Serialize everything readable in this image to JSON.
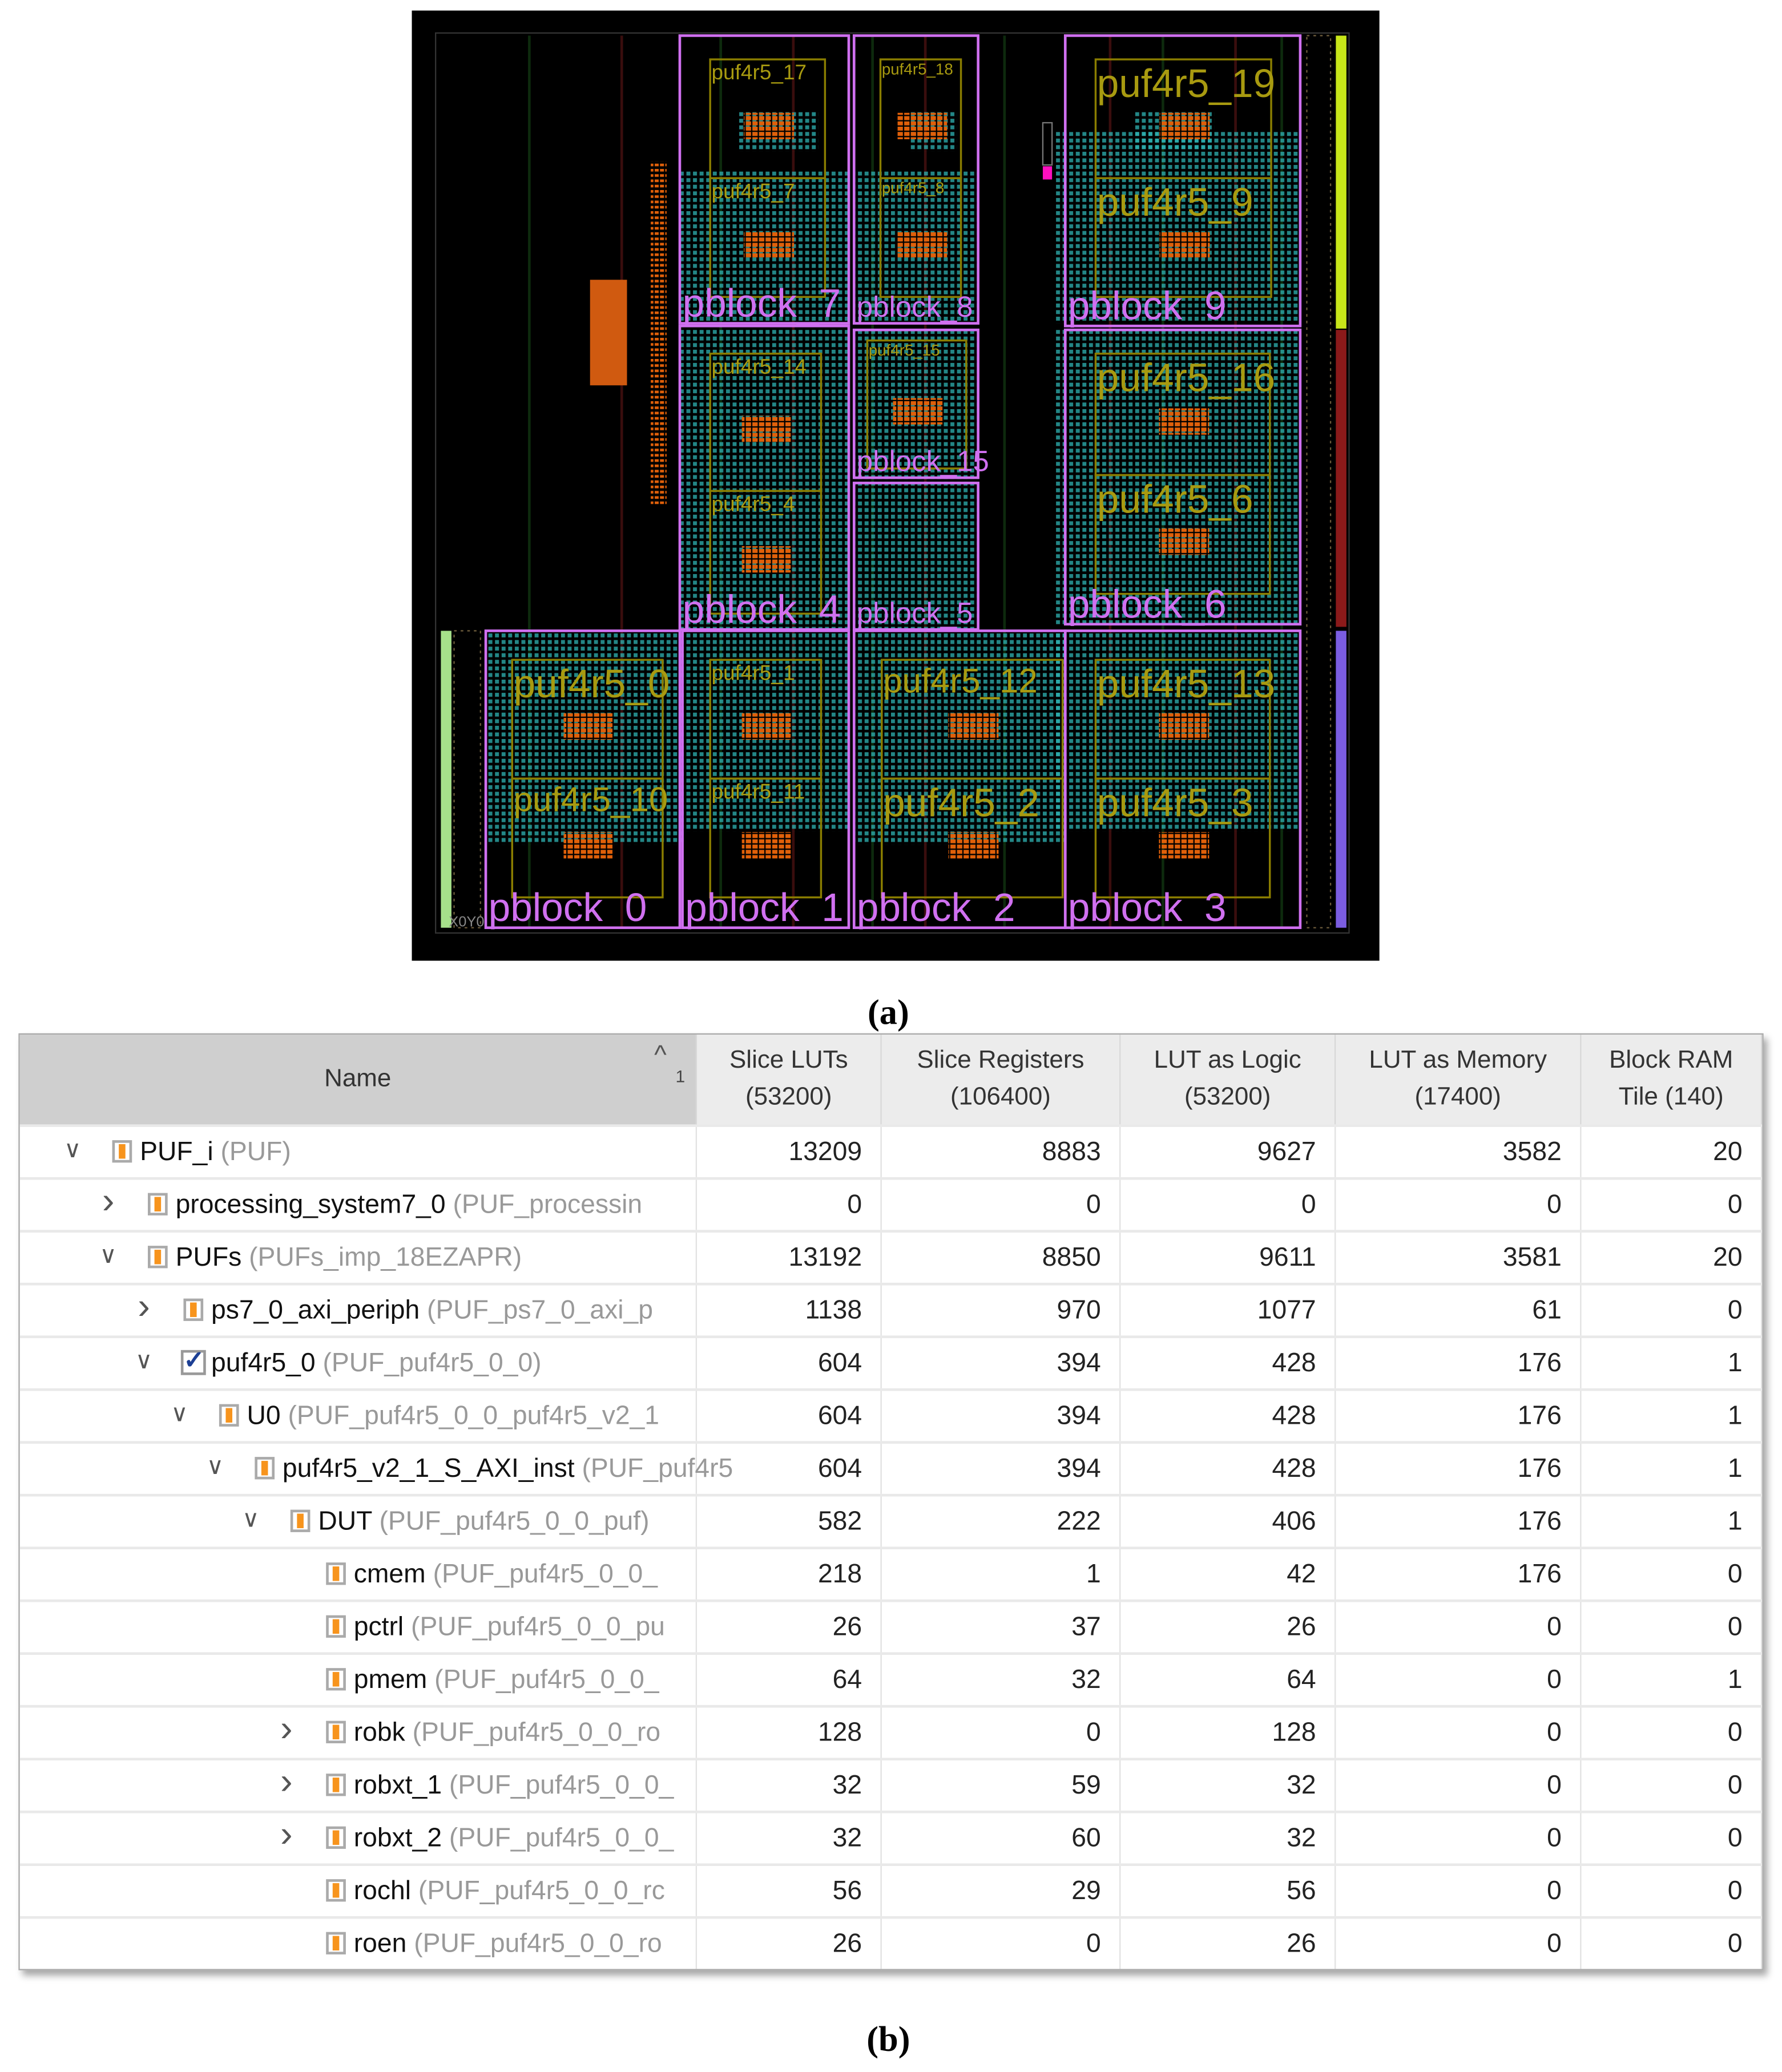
{
  "floorplan": {
    "pblocks": [
      "pblock_7",
      "pblock_8",
      "pblock_9",
      "pblock_15",
      "pblock_4",
      "pblock_5",
      "pblock_6",
      "pblock_0",
      "pblock_1",
      "pblock_2",
      "pblock_3"
    ],
    "pufs": [
      "puf4r5_17",
      "puf4r5_7",
      "puf4r5_18",
      "puf4r5_8",
      "puf4r5_19",
      "puf4r5_9",
      "puf4r5_14",
      "puf4r5_4",
      "puf4r5_15",
      "puf4r5_16",
      "puf4r5_6",
      "puf4r5_0",
      "puf4r5_10",
      "puf4r5_1",
      "puf4r5_11",
      "puf4r5_12",
      "puf4r5_2",
      "puf4r5_13",
      "puf4r5_3"
    ],
    "origin_label": "X0Y0",
    "colors": {
      "background": "#000000",
      "pblock": "#d070f0",
      "puf": "#8a7d00",
      "puf_text": "#a89a10",
      "cells": "#2fb3b3",
      "bram": "#e0600a",
      "clock_top": "#c8e619",
      "clock_mid": "#8b1a1a",
      "clock_bot": "#7b5de0",
      "clock_left": "#a6e08a"
    }
  },
  "captions": {
    "a": "(a)",
    "b": "(b)"
  },
  "table": {
    "sort_indicator": "1",
    "columns": [
      "Name",
      "Slice LUTs\n(53200)",
      "Slice Registers\n(106400)",
      "LUT as Logic\n(53200)",
      "LUT as Memory\n(17400)",
      "Block RAM\nTile (140)"
    ],
    "rows": [
      {
        "name": "PUF_i",
        "type": "(PUF)",
        "level": 0,
        "expander": "expanded",
        "icon": "instance-icon",
        "values": [
          "13209",
          "8883",
          "9627",
          "3582",
          "20"
        ]
      },
      {
        "name": "processing_system7_0",
        "type": "(PUF_processin",
        "level": 1,
        "expander": "collapsed",
        "icon": "instance-icon",
        "values": [
          "0",
          "0",
          "0",
          "0",
          "0"
        ]
      },
      {
        "name": "PUFs",
        "type": "(PUFs_imp_18EZAPR)",
        "level": 1,
        "expander": "expanded",
        "icon": "instance-icon",
        "values": [
          "13192",
          "8850",
          "9611",
          "3581",
          "20"
        ]
      },
      {
        "name": "ps7_0_axi_periph",
        "type": "(PUF_ps7_0_axi_p",
        "level": 2,
        "expander": "collapsed",
        "icon": "instance-icon",
        "values": [
          "1138",
          "970",
          "1077",
          "61",
          "0"
        ]
      },
      {
        "name": "puf4r5_0",
        "type": "(PUF_puf4r5_0_0)",
        "level": 2,
        "expander": "expanded",
        "icon": "checked-icon",
        "values": [
          "604",
          "394",
          "428",
          "176",
          "1"
        ]
      },
      {
        "name": "U0",
        "type": "(PUF_puf4r5_0_0_puf4r5_v2_1",
        "level": 3,
        "expander": "expanded",
        "icon": "instance-icon",
        "values": [
          "604",
          "394",
          "428",
          "176",
          "1"
        ]
      },
      {
        "name": "puf4r5_v2_1_S_AXI_inst",
        "type": "(PUF_puf4r5",
        "level": 4,
        "expander": "expanded",
        "icon": "instance-icon",
        "values": [
          "604",
          "394",
          "428",
          "176",
          "1"
        ]
      },
      {
        "name": "DUT",
        "type": "(PUF_puf4r5_0_0_puf)",
        "level": 5,
        "expander": "expanded",
        "icon": "instance-icon",
        "values": [
          "582",
          "222",
          "406",
          "176",
          "1"
        ]
      },
      {
        "name": "cmem",
        "type": "(PUF_puf4r5_0_0_",
        "level": 6,
        "expander": "none",
        "icon": "instance-icon",
        "values": [
          "218",
          "1",
          "42",
          "176",
          "0"
        ]
      },
      {
        "name": "pctrl",
        "type": "(PUF_puf4r5_0_0_pu",
        "level": 6,
        "expander": "none",
        "icon": "instance-icon",
        "values": [
          "26",
          "37",
          "26",
          "0",
          "0"
        ]
      },
      {
        "name": "pmem",
        "type": "(PUF_puf4r5_0_0_",
        "level": 6,
        "expander": "none",
        "icon": "instance-icon",
        "values": [
          "64",
          "32",
          "64",
          "0",
          "1"
        ]
      },
      {
        "name": "robk",
        "type": "(PUF_puf4r5_0_0_ro",
        "level": 6,
        "expander": "collapsed",
        "icon": "instance-icon",
        "values": [
          "128",
          "0",
          "128",
          "0",
          "0"
        ]
      },
      {
        "name": "robxt_1",
        "type": "(PUF_puf4r5_0_0_",
        "level": 6,
        "expander": "collapsed",
        "icon": "instance-icon",
        "values": [
          "32",
          "59",
          "32",
          "0",
          "0"
        ]
      },
      {
        "name": "robxt_2",
        "type": "(PUF_puf4r5_0_0_",
        "level": 6,
        "expander": "collapsed",
        "icon": "instance-icon",
        "values": [
          "32",
          "60",
          "32",
          "0",
          "0"
        ]
      },
      {
        "name": "rochl",
        "type": "(PUF_puf4r5_0_0_rc",
        "level": 6,
        "expander": "none",
        "icon": "instance-icon",
        "values": [
          "56",
          "29",
          "56",
          "0",
          "0"
        ]
      },
      {
        "name": "roen",
        "type": "(PUF_puf4r5_0_0_ro",
        "level": 6,
        "expander": "none",
        "icon": "instance-icon",
        "values": [
          "26",
          "0",
          "26",
          "0",
          "0"
        ]
      }
    ]
  }
}
